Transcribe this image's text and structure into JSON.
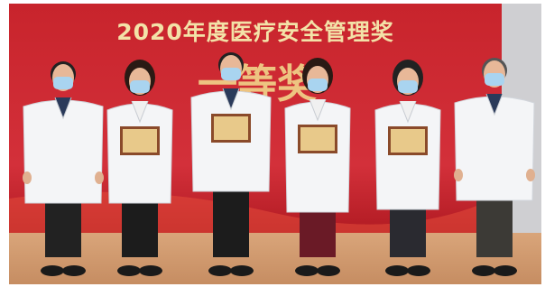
{
  "banner": {
    "title": "2020年度医疗安全管理奖",
    "award": "一等奖"
  }
}
